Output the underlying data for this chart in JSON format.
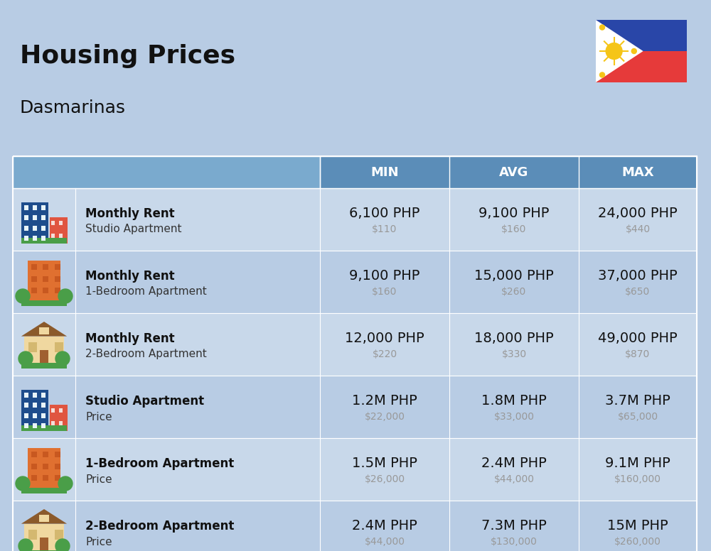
{
  "title": "Housing Prices",
  "subtitle": "Dasmarinas",
  "background_color": "#b8cce4",
  "header_bg_color": "#5b8db8",
  "header_text_color": "#ffffff",
  "row_bg_light": "#c8d8ea",
  "row_bg_dark": "#b8cce4",
  "col_headers": [
    "MIN",
    "AVG",
    "MAX"
  ],
  "rows": [
    {
      "bold_label": "Monthly Rent",
      "sub_label": "Studio Apartment",
      "icon_type": "studio_blue",
      "min_php": "6,100 PHP",
      "min_usd": "$110",
      "avg_php": "9,100 PHP",
      "avg_usd": "$160",
      "max_php": "24,000 PHP",
      "max_usd": "$440"
    },
    {
      "bold_label": "Monthly Rent",
      "sub_label": "1-Bedroom Apartment",
      "icon_type": "one_bed_orange",
      "min_php": "9,100 PHP",
      "min_usd": "$160",
      "avg_php": "15,000 PHP",
      "avg_usd": "$260",
      "max_php": "37,000 PHP",
      "max_usd": "$650"
    },
    {
      "bold_label": "Monthly Rent",
      "sub_label": "2-Bedroom Apartment",
      "icon_type": "two_bed_tan",
      "min_php": "12,000 PHP",
      "min_usd": "$220",
      "avg_php": "18,000 PHP",
      "avg_usd": "$330",
      "max_php": "49,000 PHP",
      "max_usd": "$870"
    },
    {
      "bold_label": "Studio Apartment",
      "sub_label": "Price",
      "icon_type": "studio_blue",
      "min_php": "1.2M PHP",
      "min_usd": "$22,000",
      "avg_php": "1.8M PHP",
      "avg_usd": "$33,000",
      "max_php": "3.7M PHP",
      "max_usd": "$65,000"
    },
    {
      "bold_label": "1-Bedroom Apartment",
      "sub_label": "Price",
      "icon_type": "one_bed_orange",
      "min_php": "1.5M PHP",
      "min_usd": "$26,000",
      "avg_php": "2.4M PHP",
      "avg_usd": "$44,000",
      "max_php": "9.1M PHP",
      "max_usd": "$160,000"
    },
    {
      "bold_label": "2-Bedroom Apartment",
      "sub_label": "Price",
      "icon_type": "two_bed_brown",
      "min_php": "2.4M PHP",
      "min_usd": "$44,000",
      "avg_php": "7.3M PHP",
      "avg_usd": "$130,000",
      "max_php": "15M PHP",
      "max_usd": "$260,000"
    }
  ],
  "title_fontsize": 26,
  "subtitle_fontsize": 18,
  "header_fontsize": 13,
  "cell_php_fontsize": 14,
  "cell_usd_fontsize": 10,
  "label_bold_fontsize": 12,
  "label_sub_fontsize": 11
}
